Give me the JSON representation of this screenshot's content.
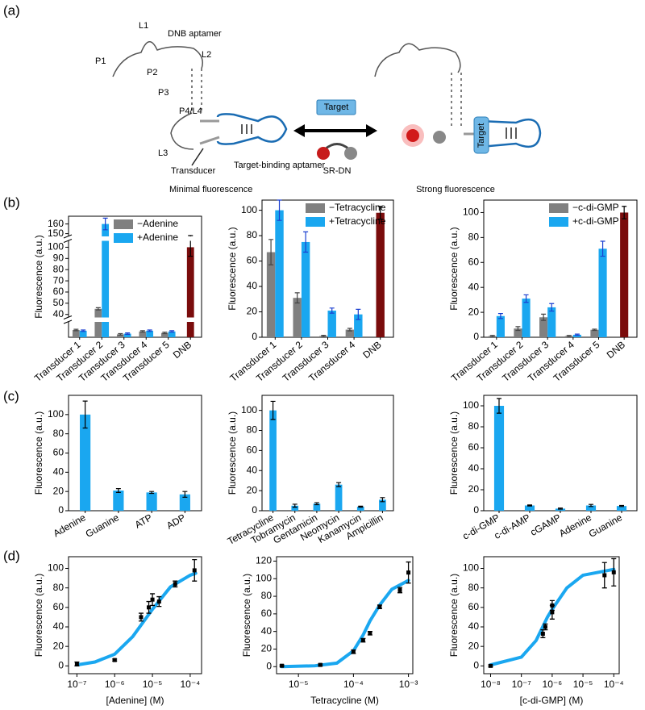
{
  "panel_labels": [
    "(a)",
    "(b)",
    "(c)",
    "(d)"
  ],
  "diagram": {
    "left_title": "DNB aptamer",
    "l1": "L1",
    "l2": "L2",
    "p1": "P1",
    "p2": "P2",
    "p3": "P3",
    "p4": "P4/L4",
    "l3": "L3",
    "transducer": "Transducer",
    "target_aptamer": "Target-binding aptamer",
    "left_caption": "Minimal fluorescence",
    "target_box": "Target",
    "probe": "SR-DN",
    "right_caption": "Strong fluorescence",
    "bound_target": "Target"
  },
  "chart_data": [
    {
      "type": "bar",
      "categories": [
        "Transducer 1",
        "Transducer 2",
        "Transducer 3",
        "Transducer 4",
        "Transducer 5",
        "DNB"
      ],
      "series": [
        {
          "name": "−Adenine",
          "color": "#808080",
          "values": [
            5,
            45,
            2,
            4,
            3,
            null
          ],
          "errors": [
            0.5,
            1,
            0.5,
            0.5,
            0.5,
            null
          ]
        },
        {
          "name": "+Adenine",
          "color": "#1aa7f0",
          "values": [
            4.5,
            160,
            2.5,
            4.5,
            4,
            null
          ],
          "errors": [
            0.5,
            6,
            0.5,
            0.5,
            0.5,
            null
          ]
        },
        {
          "color": "#7a0c0c",
          "values": [
            null,
            null,
            null,
            null,
            null,
            100
          ],
          "errors": [
            null,
            null,
            null,
            null,
            null,
            8
          ]
        }
      ],
      "y_label": "Fluorescence (a.u.)",
      "ysegments": [
        [
          0,
          10
        ],
        [
          38,
          105
        ],
        [
          148,
          168
        ]
      ],
      "yticks": [
        40,
        50,
        60,
        70,
        80,
        90,
        100,
        150,
        160
      ],
      "legend": "upper right"
    },
    {
      "type": "bar",
      "categories": [
        "Transducer 1",
        "Transducer 2",
        "Transducer 3",
        "Transducer 4",
        "DNB"
      ],
      "series": [
        {
          "name": "−Tetracycline",
          "color": "#808080",
          "values": [
            67,
            31,
            1,
            6,
            null
          ],
          "errors": [
            10,
            4,
            0.5,
            1,
            null
          ]
        },
        {
          "name": "+Tetracycline",
          "color": "#1aa7f0",
          "values": [
            100,
            75,
            21,
            18,
            null
          ],
          "errors": [
            8,
            8,
            2,
            4,
            null
          ]
        },
        {
          "color": "#7a0c0c",
          "values": [
            null,
            null,
            null,
            null,
            98
          ],
          "errors": [
            null,
            null,
            null,
            null,
            5
          ]
        }
      ],
      "y_label": "Fluorescence (a.u.)",
      "ylim": [
        0,
        108
      ],
      "yticks": [
        0,
        20,
        40,
        60,
        80,
        100
      ],
      "legend": "upper right"
    },
    {
      "type": "bar",
      "categories": [
        "Transducer 1",
        "Transducer 2",
        "Transducer 3",
        "Transducer 4",
        "Transducer 5",
        "DNB"
      ],
      "series": [
        {
          "name": "−c-di-GMP",
          "color": "#808080",
          "values": [
            1,
            7,
            16,
            1,
            6,
            null
          ],
          "errors": [
            0.5,
            1.5,
            2.5,
            0.5,
            0.5,
            null
          ]
        },
        {
          "name": "+c-di-GMP",
          "color": "#1aa7f0",
          "values": [
            17,
            31,
            24,
            2,
            71,
            null
          ],
          "errors": [
            2,
            3,
            3,
            0.5,
            6,
            null
          ]
        },
        {
          "color": "#7a0c0c",
          "values": [
            null,
            null,
            null,
            null,
            null,
            100
          ],
          "errors": [
            null,
            null,
            null,
            null,
            null,
            5
          ]
        }
      ],
      "y_label": "Fluorescence (a.u.)",
      "ylim": [
        0,
        110
      ],
      "yticks": [
        0,
        20,
        40,
        60,
        80,
        100
      ],
      "legend": "upper right"
    },
    {
      "type": "bar",
      "categories": [
        "Adenine",
        "Guanine",
        "ATP",
        "ADP"
      ],
      "series": [
        {
          "color": "#1aa7f0",
          "values": [
            100,
            21,
            19,
            17
          ],
          "errors": [
            14,
            2,
            1,
            3
          ]
        }
      ],
      "y_label": "Fluorescence (a.u.)",
      "ylim": [
        0,
        120
      ],
      "yticks": [
        0,
        20,
        40,
        60,
        80,
        100
      ]
    },
    {
      "type": "bar",
      "categories": [
        "Tetracycline",
        "Tobramycin",
        "Gentamicin",
        "Neomycin",
        "Kanamycin",
        "Ampicillin"
      ],
      "series": [
        {
          "color": "#1aa7f0",
          "values": [
            100,
            5,
            7,
            26,
            4,
            11
          ],
          "errors": [
            9,
            1.5,
            1,
            2,
            0.5,
            2
          ]
        }
      ],
      "y_label": "Fluorescence (a.u.)",
      "ylim": [
        0,
        115
      ],
      "yticks": [
        0,
        20,
        40,
        60,
        80,
        100
      ]
    },
    {
      "type": "bar",
      "categories": [
        "c-di-GMP",
        "c-di-AMP",
        "cGAMP",
        "Adenine",
        "Guanine"
      ],
      "series": [
        {
          "color": "#1aa7f0",
          "values": [
            100,
            5,
            2,
            5,
            4.5
          ],
          "errors": [
            7,
            0.5,
            0.5,
            1,
            0.5
          ]
        }
      ],
      "y_label": "Fluorescence (a.u.)",
      "ylim": [
        0,
        110
      ],
      "yticks": [
        0,
        20,
        40,
        60,
        80,
        100
      ]
    },
    {
      "type": "scatter",
      "x_label": "[Adenine] (M)",
      "y_label": "Fluorescence (a.u.)",
      "xscale": "log",
      "xlim": [
        6e-08,
        0.0002
      ],
      "xticks": [
        {
          "value": 1e-07,
          "label": "10⁻⁷"
        },
        {
          "value": 1e-06,
          "label": "10⁻⁶"
        },
        {
          "value": 1e-05,
          "label": "10⁻⁵"
        },
        {
          "value": 0.0001,
          "label": "10⁻⁴"
        }
      ],
      "ylim": [
        -8,
        112
      ],
      "yticks": [
        0,
        20,
        40,
        60,
        80,
        100
      ],
      "series": [
        {
          "style": "line",
          "color": "#1aa7f0",
          "x": [
            1e-07,
            3e-07,
            1e-06,
            3e-06,
            1e-05,
            3e-05,
            0.0001,
            0.00014
          ],
          "values": [
            1,
            4,
            12,
            30,
            58,
            81,
            93,
            95
          ]
        },
        {
          "style": "points",
          "color": "#000000",
          "x": [
            1e-07,
            1e-06,
            5e-06,
            8e-06,
            1e-05,
            1.5e-05,
            4e-05,
            0.00013
          ],
          "values": [
            2,
            6,
            50,
            60,
            68,
            66,
            84,
            98
          ],
          "errors": [
            2,
            1,
            4,
            6,
            6,
            5,
            3,
            11
          ]
        }
      ]
    },
    {
      "type": "scatter",
      "x_label": "Tetracycline (M)",
      "y_label": "Fluorescence (a.u.)",
      "xscale": "log",
      "xlim": [
        4e-06,
        0.0012
      ],
      "xticks": [
        {
          "value": 1e-05,
          "label": "10⁻⁵"
        },
        {
          "value": 0.0001,
          "label": "10⁻⁴"
        },
        {
          "value": 0.001,
          "label": "10⁻³"
        }
      ],
      "ylim": [
        -8,
        125
      ],
      "yticks": [
        0,
        20,
        40,
        60,
        80,
        100,
        120
      ],
      "series": [
        {
          "style": "line",
          "color": "#1aa7f0",
          "x": [
            5e-06,
            2e-05,
            5e-05,
            0.0001,
            0.00015,
            0.0002,
            0.0003,
            0.0005,
            0.001
          ],
          "values": [
            0,
            1,
            4,
            18,
            36,
            52,
            70,
            88,
            98
          ]
        },
        {
          "style": "points",
          "color": "#000000",
          "x": [
            5e-06,
            2.5e-05,
            0.0001,
            0.00015,
            0.0002,
            0.0003,
            0.0007,
            0.001
          ],
          "values": [
            1,
            2,
            17,
            30,
            38,
            68,
            87,
            107
          ],
          "errors": [
            1,
            1,
            2,
            2,
            2,
            2,
            3,
            12
          ]
        }
      ]
    },
    {
      "type": "scatter",
      "x_label": "[c-di-GMP] (M)",
      "y_label": "Fluorescence (a.u.)",
      "xscale": "log",
      "xlim": [
        6e-09,
        0.00015
      ],
      "xticks": [
        {
          "value": 1e-08,
          "label": "10⁻⁸"
        },
        {
          "value": 1e-07,
          "label": "10⁻⁷"
        },
        {
          "value": 1e-06,
          "label": "10⁻⁶"
        },
        {
          "value": 1e-05,
          "label": "10⁻⁵"
        },
        {
          "value": 0.0001,
          "label": "10⁻⁴"
        }
      ],
      "ylim": [
        -8,
        112
      ],
      "yticks": [
        0,
        20,
        40,
        60,
        80,
        100
      ],
      "series": [
        {
          "style": "line",
          "color": "#1aa7f0",
          "x": [
            1e-08,
            1e-07,
            3e-07,
            7e-07,
            1e-06,
            3e-06,
            1e-05,
            0.0001
          ],
          "values": [
            1,
            9,
            26,
            50,
            58,
            80,
            93,
            99
          ]
        },
        {
          "style": "points",
          "color": "#000000",
          "x": [
            1e-08,
            5e-07,
            6e-07,
            1e-06,
            1e-06,
            5e-05,
            0.0001
          ],
          "values": [
            0,
            33,
            40,
            55,
            62,
            93,
            96
          ],
          "errors": [
            1,
            4,
            3,
            7,
            5,
            13,
            14
          ]
        }
      ]
    }
  ]
}
